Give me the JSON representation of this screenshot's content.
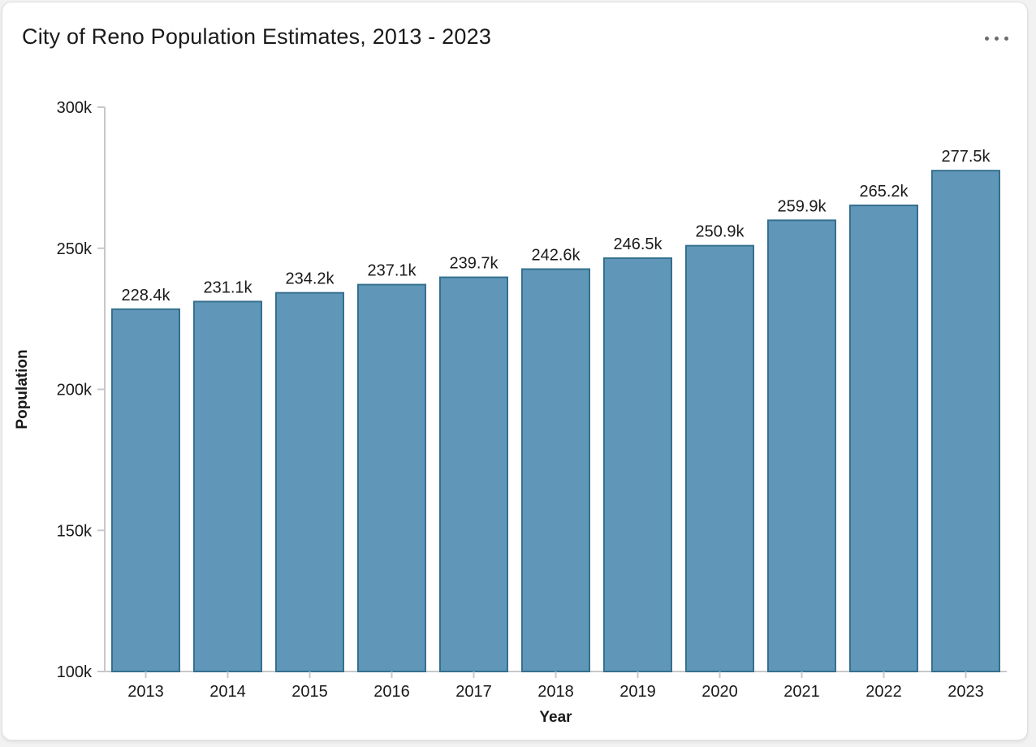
{
  "card": {
    "title": "City of Reno Population Estimates, 2013 - 2023",
    "menu_icon": "ellipsis-horizontal"
  },
  "colors": {
    "bar_fill": "#6097B8",
    "bar_stroke": "#35708E",
    "axis_line": "#C8C8C8",
    "text": "#1A1A1A",
    "page_background": "#F2F2F2",
    "card_background": "#FFFFFF",
    "card_border": "#DEDEDE",
    "menu_dots": "#6B6B6B"
  },
  "chart_data": {
    "type": "bar",
    "title": "City of Reno Population Estimates, 2013 - 2023",
    "categories": [
      "2013",
      "2014",
      "2015",
      "2016",
      "2017",
      "2018",
      "2019",
      "2020",
      "2021",
      "2022",
      "2023"
    ],
    "values": [
      228.4,
      231.1,
      234.2,
      237.1,
      239.7,
      242.6,
      246.5,
      250.9,
      259.9,
      265.2,
      277.5
    ],
    "value_unit": "thousands",
    "value_labels": [
      "228.4k",
      "231.1k",
      "234.2k",
      "237.1k",
      "239.7k",
      "242.6k",
      "246.5k",
      "250.9k",
      "259.9k",
      "265.2k",
      "277.5k"
    ],
    "xlabel": "Year",
    "ylabel": "Population",
    "ylim": [
      100,
      300
    ],
    "yticks": [
      100,
      150,
      200,
      250,
      300
    ],
    "ytick_labels": [
      "100k",
      "150k",
      "200k",
      "250k",
      "300k"
    ],
    "grid": false,
    "legend_position": "none"
  }
}
